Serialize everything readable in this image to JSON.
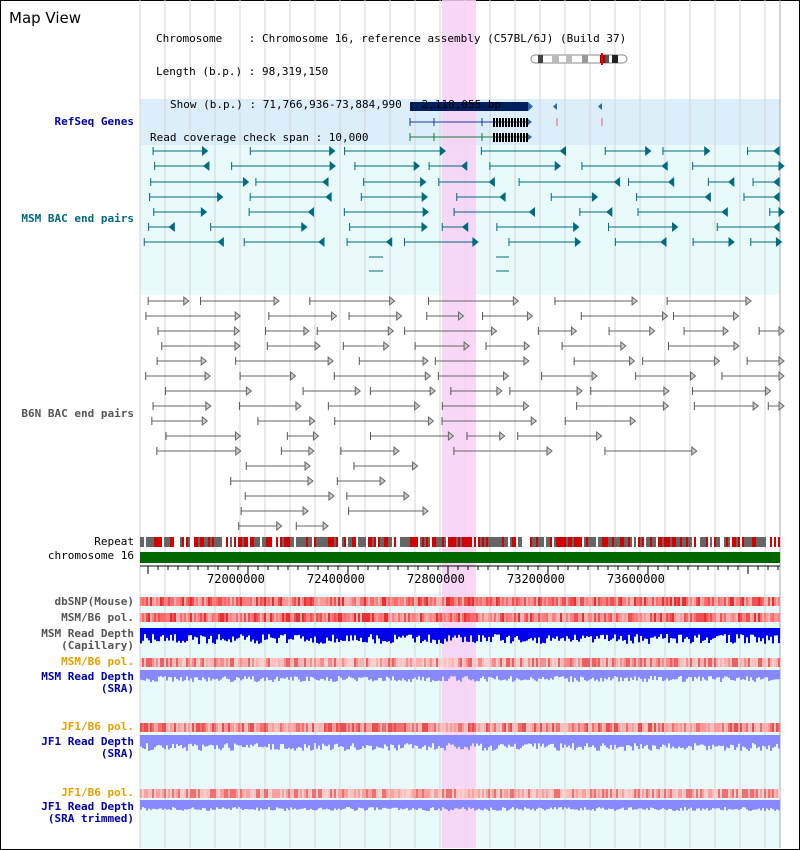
{
  "title": "Map View",
  "info": {
    "chromosome": "Chromosome    : Chromosome 16, reference assembly (C57BL/6J) (Build 37)",
    "length": "Length (b.p.) : 98,319,150",
    "show": "Show (b.p.) : 71,766,936-73,884,990 : 2,118,055 bp",
    "coverage": "Read coverage check span : 10,000"
  },
  "tracks": {
    "refseq": "RefSeq Genes",
    "msm_bac": "MSM BAC end pairs",
    "b6n_bac": "B6N BAC end pairs",
    "repeat": "Repeat",
    "chromosome": "chromosome 16",
    "dbsnp": "dbSNP(Mouse)",
    "msm_b6_pol_1": "MSM/B6 pol.",
    "msm_read_depth_cap": "MSM Read Depth\n(Capillary)",
    "msm_b6_pol_2": "MSM/B6 pol.",
    "msm_read_depth_sra": "MSM Read Depth\n(SRA)",
    "jf1_b6_pol_1": "JF1/B6 pol.",
    "jf1_read_depth_sra": "JF1 Read Depth\n(SRA)",
    "jf1_b6_pol_2": "JF1/B6 pol.",
    "jf1_read_depth_trim": "JF1 Read Depth\n(SRA trimmed)"
  },
  "axis": {
    "ticks": [
      "72000000",
      "72400000",
      "72800000",
      "73200000",
      "73600000"
    ]
  },
  "colors": {
    "refseq_bg": "#dceefa",
    "msm_bg": "#e8fafa",
    "highlight": "#f8d0f4",
    "teal": "#006a80",
    "gene": "#001f5c",
    "chrom_bar": "#006600",
    "depth_dark": "#0000ee",
    "depth_light": "#8888ff"
  }
}
